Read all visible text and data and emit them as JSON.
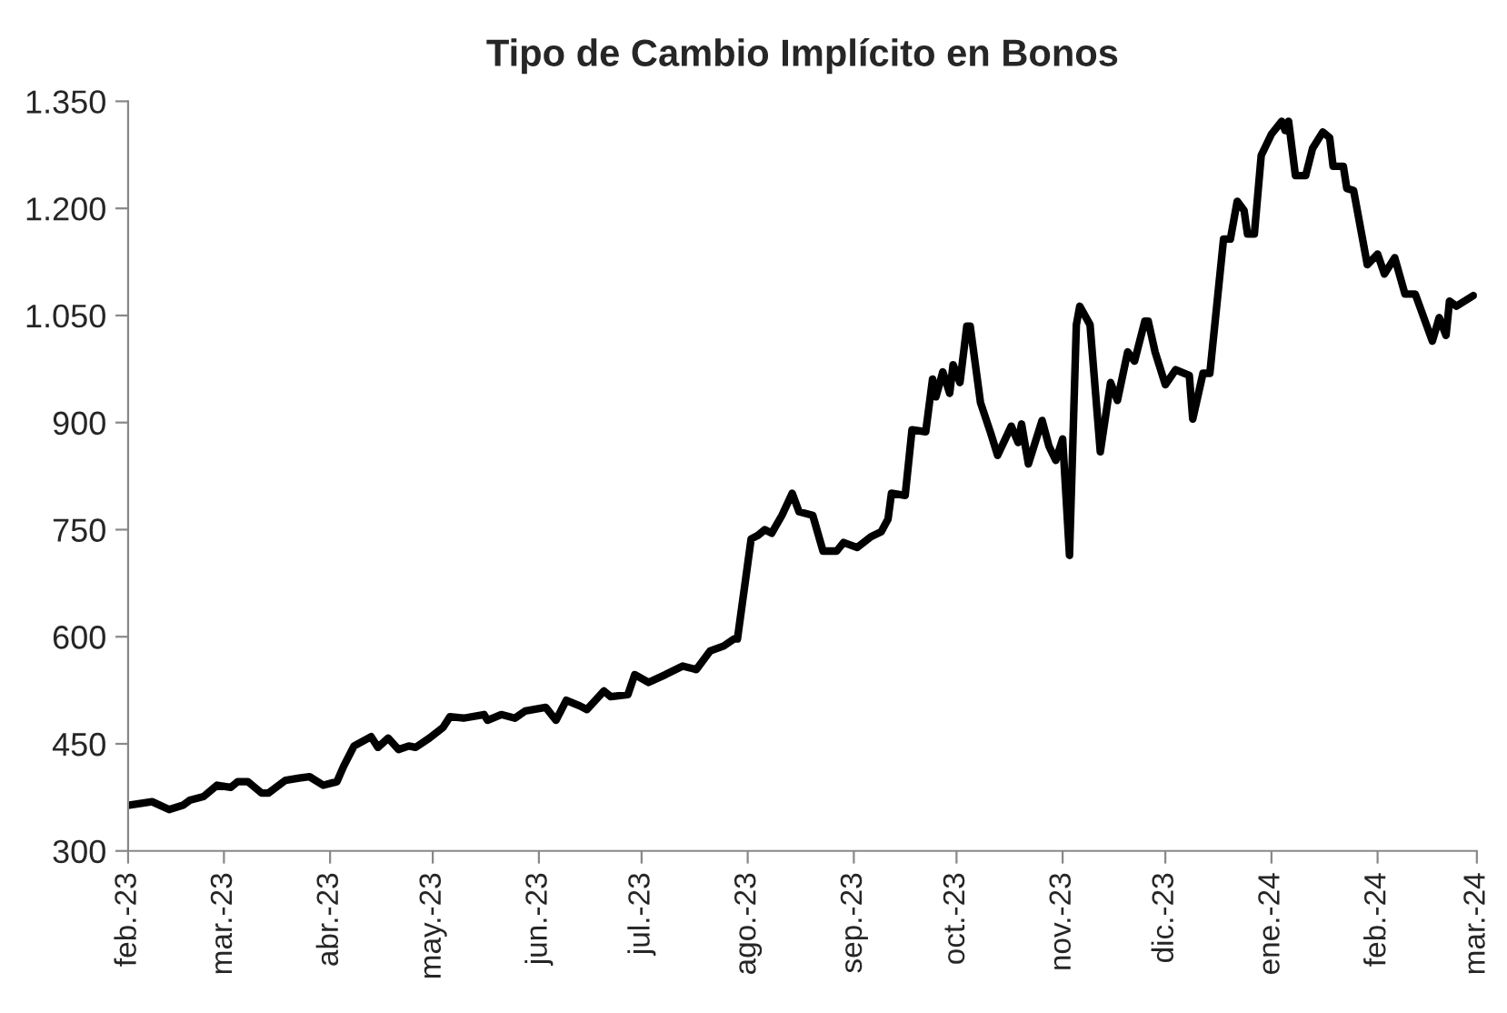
{
  "chart_data": {
    "type": "line",
    "title": "Tipo de Cambio Implícito en Bonos",
    "x": [
      "2023-02-01",
      "2023-02-08",
      "2023-02-13",
      "2023-02-17",
      "2023-02-19",
      "2023-02-23",
      "2023-02-27",
      "2023-03-03",
      "2023-03-05",
      "2023-03-08",
      "2023-03-12",
      "2023-03-14",
      "2023-03-19",
      "2023-03-23",
      "2023-03-26",
      "2023-03-30",
      "2023-04-03",
      "2023-04-05",
      "2023-04-08",
      "2023-04-13",
      "2023-04-15",
      "2023-04-18",
      "2023-04-21",
      "2023-04-24",
      "2023-04-26",
      "2023-04-30",
      "2023-05-04",
      "2023-05-06",
      "2023-05-10",
      "2023-05-16",
      "2023-05-17",
      "2023-05-21",
      "2023-05-25",
      "2023-05-28",
      "2023-06-03",
      "2023-06-06",
      "2023-06-09",
      "2023-06-13",
      "2023-06-15",
      "2023-06-20",
      "2023-06-22",
      "2023-06-27",
      "2023-06-29",
      "2023-07-03",
      "2023-07-08",
      "2023-07-13",
      "2023-07-17",
      "2023-07-21",
      "2023-07-25",
      "2023-07-28",
      "2023-07-29",
      "2023-08-02",
      "2023-08-04",
      "2023-08-06",
      "2023-08-08",
      "2023-08-11",
      "2023-08-14",
      "2023-08-16",
      "2023-08-20",
      "2023-08-23",
      "2023-08-27",
      "2023-08-29",
      "2023-09-02",
      "2023-09-06",
      "2023-09-09",
      "2023-09-11",
      "2023-09-12",
      "2023-09-16",
      "2023-09-18",
      "2023-09-22",
      "2023-09-24",
      "2023-09-25",
      "2023-09-27",
      "2023-09-29",
      "2023-09-30",
      "2023-10-02",
      "2023-10-04",
      "2023-10-05",
      "2023-10-08",
      "2023-10-11",
      "2023-10-13",
      "2023-10-17",
      "2023-10-19",
      "2023-10-20",
      "2023-10-22",
      "2023-10-26",
      "2023-10-28",
      "2023-10-30",
      "2023-11-01",
      "2023-11-03",
      "2023-11-05",
      "2023-11-06",
      "2023-11-09",
      "2023-11-12",
      "2023-11-15",
      "2023-11-17",
      "2023-11-20",
      "2023-11-22",
      "2023-11-25",
      "2023-11-26",
      "2023-11-28",
      "2023-12-01",
      "2023-12-04",
      "2023-12-08",
      "2023-12-09",
      "2023-12-12",
      "2023-12-14",
      "2023-12-18",
      "2023-12-20",
      "2023-12-22",
      "2023-12-24",
      "2023-12-25",
      "2023-12-27",
      "2023-12-29",
      "2024-01-01",
      "2024-01-04",
      "2024-01-05",
      "2024-01-06",
      "2024-01-08",
      "2024-01-11",
      "2024-01-13",
      "2024-01-16",
      "2024-01-18",
      "2024-01-19",
      "2024-01-22",
      "2024-01-23",
      "2024-01-25",
      "2024-01-29",
      "2024-02-01",
      "2024-02-03",
      "2024-02-06",
      "2024-02-09",
      "2024-02-12",
      "2024-02-17",
      "2024-02-19",
      "2024-02-21",
      "2024-02-22",
      "2024-02-24",
      "2024-02-29"
    ],
    "series": [
      {
        "color": "#000000",
        "values": [
          364,
          369,
          358,
          364,
          371,
          376,
          392,
          389,
          397,
          397,
          381,
          381,
          399,
          402,
          404,
          392,
          397,
          419,
          447,
          460,
          445,
          458,
          442,
          447,
          445,
          458,
          473,
          488,
          486,
          491,
          483,
          491,
          486,
          496,
          501,
          483,
          511,
          503,
          498,
          524,
          516,
          519,
          547,
          536,
          547,
          559,
          554,
          580,
          587,
          597,
          597,
          737,
          742,
          750,
          745,
          770,
          801,
          775,
          770,
          720,
          720,
          732,
          725,
          740,
          747,
          765,
          801,
          798,
          890,
          887,
          961,
          936,
          971,
          941,
          981,
          956,
          1035,
          1035,
          928,
          885,
          854,
          895,
          872,
          898,
          842,
          903,
          867,
          847,
          877,
          714,
          1037,
          1063,
          1037,
          859,
          956,
          931,
          999,
          986,
          1042,
          1042,
          999,
          953,
          974,
          966,
          905,
          969,
          969,
          1157,
          1157,
          1210,
          1197,
          1164,
          1164,
          1274,
          1304,
          1322,
          1309,
          1322,
          1246,
          1246,
          1284,
          1307,
          1299,
          1259,
          1259,
          1228,
          1225,
          1121,
          1136,
          1108,
          1131,
          1080,
          1080,
          1014,
          1047,
          1022,
          1070,
          1063,
          1078
        ]
      }
    ],
    "xlim": [
      "2023-02-01",
      "2024-03-01"
    ],
    "xticks": [
      {
        "value": "2023-02-01",
        "label": "feb.-23"
      },
      {
        "value": "2023-03-01",
        "label": "mar.-23"
      },
      {
        "value": "2023-04-01",
        "label": "abr.-23"
      },
      {
        "value": "2023-05-01",
        "label": "may.-23"
      },
      {
        "value": "2023-06-01",
        "label": "jun.-23"
      },
      {
        "value": "2023-07-01",
        "label": "jul.-23"
      },
      {
        "value": "2023-08-01",
        "label": "ago.-23"
      },
      {
        "value": "2023-09-01",
        "label": "sep.-23"
      },
      {
        "value": "2023-10-01",
        "label": "oct.-23"
      },
      {
        "value": "2023-11-01",
        "label": "nov.-23"
      },
      {
        "value": "2023-12-01",
        "label": "dic.-23"
      },
      {
        "value": "2024-01-01",
        "label": "ene.-24"
      },
      {
        "value": "2024-02-01",
        "label": "feb.-24"
      },
      {
        "value": "2024-03-01",
        "label": "mar.-24"
      }
    ],
    "ylim": [
      300,
      1350
    ],
    "yticks": [
      300,
      450,
      600,
      750,
      900,
      {
        "value": 1050,
        "label": "1.050"
      },
      {
        "value": 1200,
        "label": "1.200"
      },
      {
        "value": 1350,
        "label": "1.350"
      }
    ],
    "marker": "none",
    "line_style": "solid"
  }
}
